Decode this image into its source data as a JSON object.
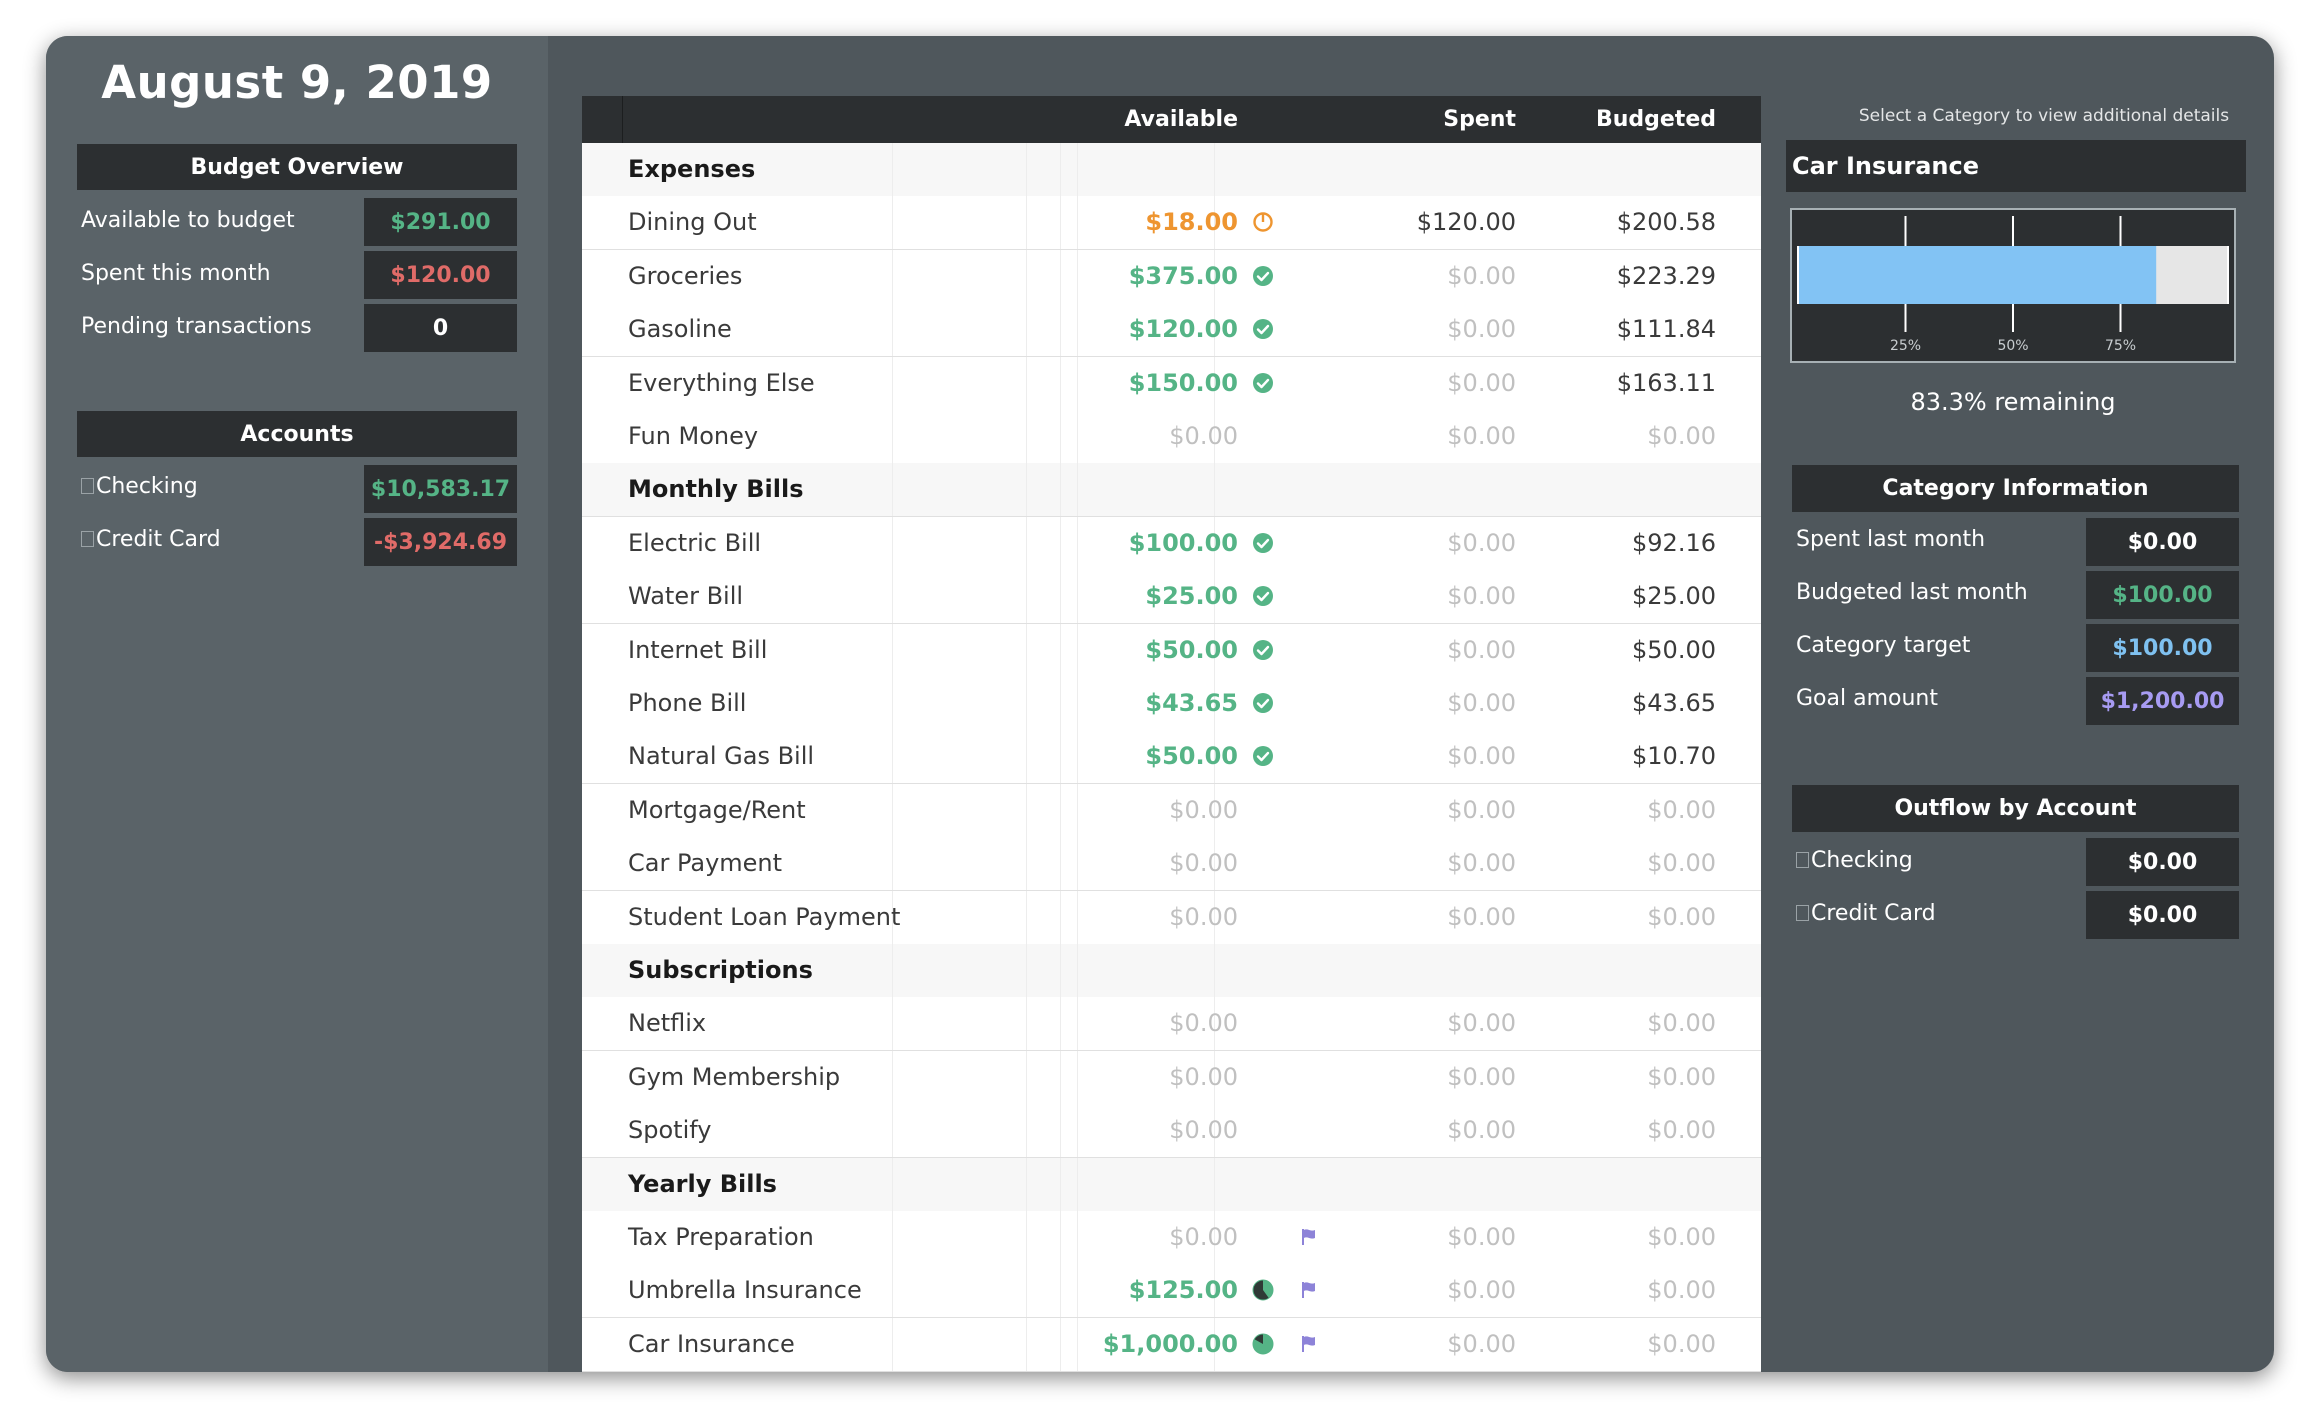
{
  "left": {
    "date": "August 9, 2019",
    "budget_overview": {
      "title": "Budget Overview",
      "rows": [
        {
          "label": "Available to budget",
          "value": "$291.00",
          "color": "#55b486"
        },
        {
          "label": "Spent this month",
          "value": "$120.00",
          "color": "#e06b68"
        },
        {
          "label": "Pending transactions",
          "value": "0",
          "color": "#ffffff"
        }
      ]
    },
    "accounts": {
      "title": "Accounts",
      "rows": [
        {
          "label": "Checking",
          "value": "$10,583.17",
          "color": "#55b486"
        },
        {
          "label": "Credit Card",
          "value": "-$3,924.69",
          "color": "#e06b68"
        }
      ]
    }
  },
  "table": {
    "headers": {
      "available": "Available",
      "spent": "Spent",
      "budgeted": "Budgeted"
    },
    "rows": [
      {
        "type": "group",
        "name": "Expenses"
      },
      {
        "type": "item",
        "name": "Dining Out",
        "available": "$18.00",
        "avail_style": "orange",
        "status_icon": "clock-icon",
        "spent": "$120.00",
        "spent_muted": false,
        "budgeted": "$200.58",
        "budg_muted": false
      },
      {
        "type": "item",
        "name": "Groceries",
        "available": "$375.00",
        "avail_style": "green",
        "status_icon": "check-circle-icon",
        "spent": "$0.00",
        "spent_muted": true,
        "budgeted": "$223.29",
        "budg_muted": false
      },
      {
        "type": "item",
        "name": "Gasoline",
        "available": "$120.00",
        "avail_style": "green",
        "status_icon": "check-circle-icon",
        "spent": "$0.00",
        "spent_muted": true,
        "budgeted": "$111.84",
        "budg_muted": false
      },
      {
        "type": "item",
        "name": "Everything Else",
        "available": "$150.00",
        "avail_style": "green",
        "status_icon": "check-circle-icon",
        "spent": "$0.00",
        "spent_muted": true,
        "budgeted": "$163.11",
        "budg_muted": false
      },
      {
        "type": "item",
        "name": "Fun Money",
        "available": "$0.00",
        "avail_style": "muted",
        "spent": "$0.00",
        "spent_muted": true,
        "budgeted": "$0.00",
        "budg_muted": true
      },
      {
        "type": "group",
        "name": "Monthly Bills"
      },
      {
        "type": "item",
        "name": "Electric Bill",
        "available": "$100.00",
        "avail_style": "green",
        "status_icon": "check-circle-icon",
        "spent": "$0.00",
        "spent_muted": true,
        "budgeted": "$92.16",
        "budg_muted": false
      },
      {
        "type": "item",
        "name": "Water Bill",
        "available": "$25.00",
        "avail_style": "green",
        "status_icon": "check-circle-icon",
        "spent": "$0.00",
        "spent_muted": true,
        "budgeted": "$25.00",
        "budg_muted": false
      },
      {
        "type": "item",
        "name": "Internet Bill",
        "available": "$50.00",
        "avail_style": "green",
        "status_icon": "check-circle-icon",
        "spent": "$0.00",
        "spent_muted": true,
        "budgeted": "$50.00",
        "budg_muted": false
      },
      {
        "type": "item",
        "name": "Phone Bill",
        "available": "$43.65",
        "avail_style": "green",
        "status_icon": "check-circle-icon",
        "spent": "$0.00",
        "spent_muted": true,
        "budgeted": "$43.65",
        "budg_muted": false
      },
      {
        "type": "item",
        "name": "Natural Gas Bill",
        "available": "$50.00",
        "avail_style": "green",
        "status_icon": "check-circle-icon",
        "spent": "$0.00",
        "spent_muted": true,
        "budgeted": "$10.70",
        "budg_muted": false
      },
      {
        "type": "item",
        "name": "Mortgage/Rent",
        "available": "$0.00",
        "avail_style": "muted",
        "spent": "$0.00",
        "spent_muted": true,
        "budgeted": "$0.00",
        "budg_muted": true
      },
      {
        "type": "item",
        "name": "Car Payment",
        "available": "$0.00",
        "avail_style": "muted",
        "spent": "$0.00",
        "spent_muted": true,
        "budgeted": "$0.00",
        "budg_muted": true
      },
      {
        "type": "item",
        "name": "Student Loan Payment",
        "available": "$0.00",
        "avail_style": "muted",
        "spent": "$0.00",
        "spent_muted": true,
        "budgeted": "$0.00",
        "budg_muted": true
      },
      {
        "type": "group",
        "name": "Subscriptions"
      },
      {
        "type": "item",
        "name": "Netflix",
        "available": "$0.00",
        "avail_style": "muted",
        "spent": "$0.00",
        "spent_muted": true,
        "budgeted": "$0.00",
        "budg_muted": true
      },
      {
        "type": "item",
        "name": "Gym Membership",
        "available": "$0.00",
        "avail_style": "muted",
        "spent": "$0.00",
        "spent_muted": true,
        "budgeted": "$0.00",
        "budg_muted": true
      },
      {
        "type": "item",
        "name": "Spotify",
        "available": "$0.00",
        "avail_style": "muted",
        "spent": "$0.00",
        "spent_muted": true,
        "budgeted": "$0.00",
        "budg_muted": true
      },
      {
        "type": "group",
        "name": "Yearly Bills"
      },
      {
        "type": "item",
        "name": "Tax Preparation",
        "available": "$0.00",
        "avail_style": "muted",
        "flag": true,
        "spent": "$0.00",
        "spent_muted": true,
        "budgeted": "$0.00",
        "budg_muted": true
      },
      {
        "type": "item",
        "name": "Umbrella Insurance",
        "available": "$125.00",
        "avail_style": "green",
        "status_icon": "progress-pie-icon",
        "progress": 0.4,
        "flag": true,
        "spent": "$0.00",
        "spent_muted": true,
        "budgeted": "$0.00",
        "budg_muted": true
      },
      {
        "type": "item",
        "name": "Car Insurance",
        "available": "$1,000.00",
        "avail_style": "green",
        "status_icon": "progress-pie-icon",
        "progress": 0.83,
        "flag": true,
        "spent": "$0.00",
        "spent_muted": true,
        "budgeted": "$0.00",
        "budg_muted": true
      }
    ]
  },
  "right": {
    "hint": "Select a Category to view additional details",
    "category_title": "Car Insurance",
    "gauge": {
      "fill_fraction": 0.833,
      "ticks": [
        "25%",
        "50%",
        "75%"
      ],
      "fill_color": "#82c3f4",
      "track_color": "#e6e6e6"
    },
    "remaining": "83.3% remaining",
    "category_info": {
      "title": "Category Information",
      "rows": [
        {
          "label": "Spent last month",
          "value": "$0.00",
          "color": "#ffffff"
        },
        {
          "label": "Budgeted last month",
          "value": "$100.00",
          "color": "#55b486"
        },
        {
          "label": "Category target",
          "value": "$100.00",
          "color": "#7fc1f0"
        },
        {
          "label": "Goal amount",
          "value": "$1,200.00",
          "color": "#a79bf2"
        }
      ]
    },
    "outflow": {
      "title": "Outflow by Account",
      "rows": [
        {
          "label": "Checking",
          "value": "$0.00",
          "color": "#ffffff"
        },
        {
          "label": "Credit Card",
          "value": "$0.00",
          "color": "#ffffff"
        }
      ]
    }
  },
  "colors": {
    "green": "#55b486",
    "red": "#e06b68",
    "orange": "#ee9530",
    "blue": "#7fc1f0",
    "purple": "#a79bf2",
    "flag": "#8d83d8"
  }
}
